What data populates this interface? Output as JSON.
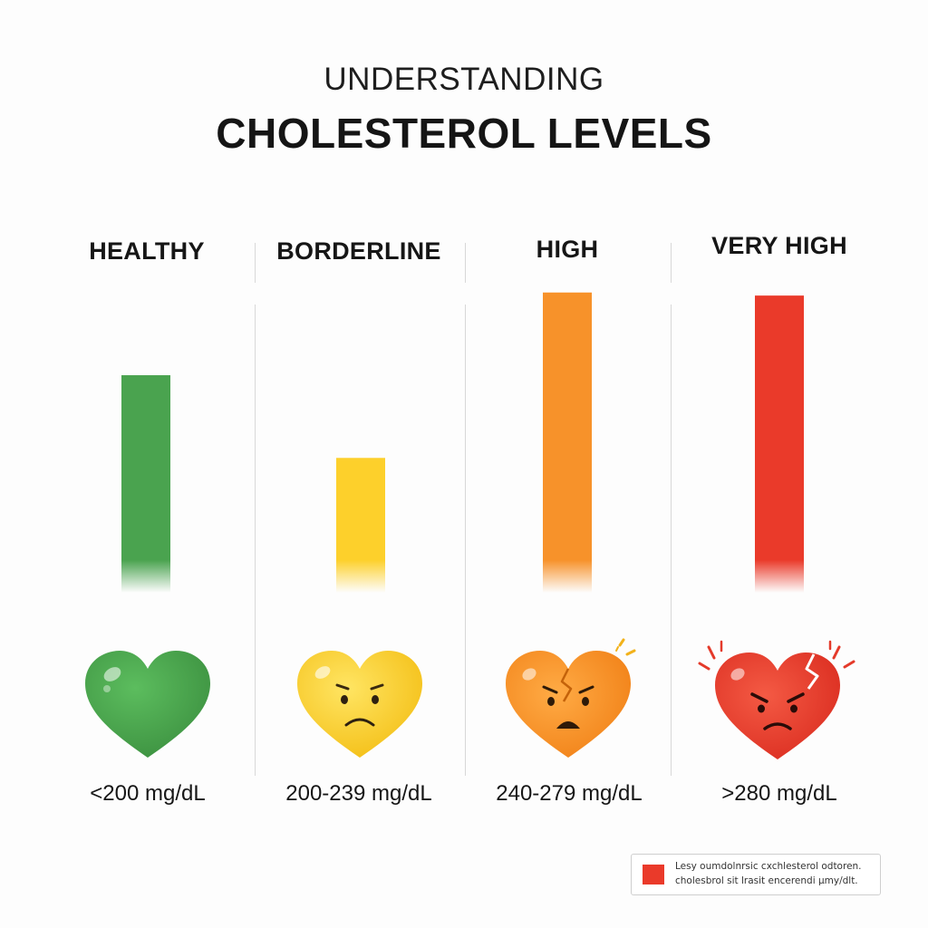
{
  "header": {
    "title_top": "UNDERSTANDING",
    "title_main": "CHOLESTEROL LEVELS"
  },
  "chart_data": {
    "type": "bar",
    "title": "UNDERSTANDING CHOLESTEROL LEVELS",
    "categories": [
      "HEALTHY",
      "BORDERLINE",
      "HIGH",
      "VERY HIGH"
    ],
    "values": [
      71,
      44,
      98,
      97
    ],
    "ylim": [
      0,
      100
    ],
    "ranges": [
      "<200 mg/dL",
      "200-239 mg/dL",
      "240-279 mg/dL",
      ">280 mg/dL"
    ],
    "colors": [
      "#4aa34f",
      "#fdd02b",
      "#f7922a",
      "#ea3a2a"
    ],
    "moods": [
      "happy-heart",
      "worried-heart",
      "distressed-cracked-heart",
      "angry-broken-heart"
    ]
  },
  "legend": {
    "swatch_color": "#ea3a2a",
    "line1": "Lesy oumdolnrsic  cxchlesterol odtoren.",
    "line2": "cholesbrol sit  lrasit encerendi µmy/dlt."
  },
  "icons": {
    "heart_healthy": "green-heart-icon",
    "heart_borderline": "yellow-worried-heart-icon",
    "heart_high": "orange-cracked-heart-icon",
    "heart_very_high": "red-broken-heart-icon"
  }
}
